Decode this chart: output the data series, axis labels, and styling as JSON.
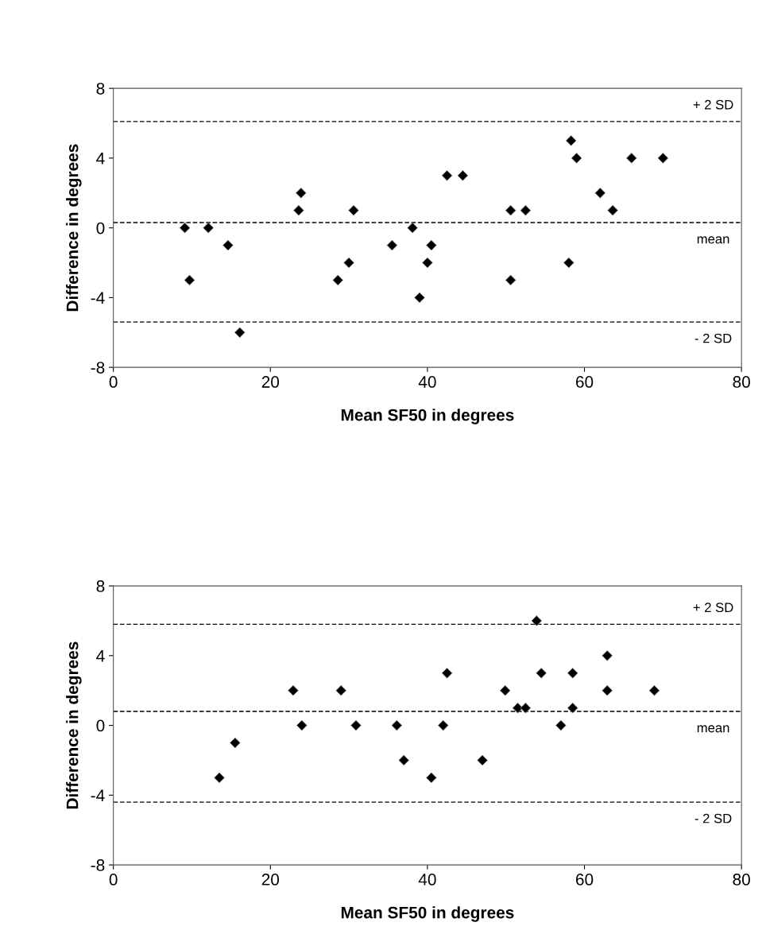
{
  "chart_data": [
    {
      "type": "scatter",
      "xlabel": "Mean SF50 in degrees",
      "ylabel": "Difference in degrees",
      "marker": "diamond",
      "grid": false,
      "xlim": [
        0,
        80
      ],
      "xticks": [
        0,
        20,
        40,
        60,
        80
      ],
      "ylim": [
        -8,
        8
      ],
      "yticks": [
        -8,
        -4,
        0,
        4,
        8
      ],
      "series": [
        {
          "color": "#000000",
          "x": [
            9.1,
            9.7,
            12.1,
            14.6,
            16.1,
            23.6,
            23.9,
            28.6,
            30.0,
            30.6,
            35.5,
            38.1,
            39.0,
            40.0,
            40.5,
            42.5,
            44.5,
            50.6,
            50.6,
            52.5,
            58.3,
            59.0,
            58.0,
            62.0,
            63.6,
            66.0,
            70.0
          ],
          "values": [
            0,
            -3,
            0,
            -1,
            -6,
            1,
            2,
            -3,
            -2,
            1,
            -1,
            0,
            -4,
            -2,
            -1,
            3,
            3,
            1,
            -3,
            1,
            5,
            4,
            -2,
            2,
            1,
            4,
            4
          ]
        }
      ],
      "ref_lines": [
        {
          "axis": "y",
          "value": 6.1,
          "label": "+ 2 SD",
          "color": "#000000",
          "line_style": "dashed"
        },
        {
          "axis": "y",
          "value": 0.3,
          "label": "mean",
          "color": "#000000",
          "line_style": "dashed"
        },
        {
          "axis": "y",
          "value": -5.4,
          "label": "- 2 SD",
          "color": "#000000",
          "line_style": "dashed"
        }
      ]
    },
    {
      "type": "scatter",
      "xlabel": "Mean SF50 in degrees",
      "ylabel": "Difference in degrees",
      "marker": "diamond",
      "grid": false,
      "xlim": [
        0,
        80
      ],
      "xticks": [
        0,
        20,
        40,
        60,
        80
      ],
      "ylim": [
        -8,
        8
      ],
      "yticks": [
        -8,
        -4,
        0,
        4,
        8
      ],
      "series": [
        {
          "color": "#000000",
          "x": [
            13.5,
            15.5,
            22.9,
            24.0,
            29.0,
            30.9,
            36.1,
            37.0,
            40.5,
            42.0,
            42.5,
            47.0,
            49.9,
            51.5,
            52.5,
            53.9,
            54.5,
            57.0,
            58.5,
            58.5,
            62.9,
            62.9,
            68.9
          ],
          "values": [
            -3,
            -1,
            2,
            0,
            2,
            0,
            0,
            -2,
            -3,
            0,
            3,
            -2,
            2,
            1,
            1,
            6,
            3,
            0,
            3,
            1,
            2,
            4,
            2
          ]
        }
      ],
      "ref_lines": [
        {
          "axis": "y",
          "value": 5.8,
          "label": "+ 2 SD",
          "color": "#000000",
          "line_style": "dashed"
        },
        {
          "axis": "y",
          "value": 0.8,
          "label": "mean",
          "color": "#000000",
          "line_style": "dashed"
        },
        {
          "axis": "y",
          "value": -4.4,
          "label": "- 2 SD",
          "color": "#000000",
          "line_style": "dashed"
        }
      ]
    }
  ]
}
